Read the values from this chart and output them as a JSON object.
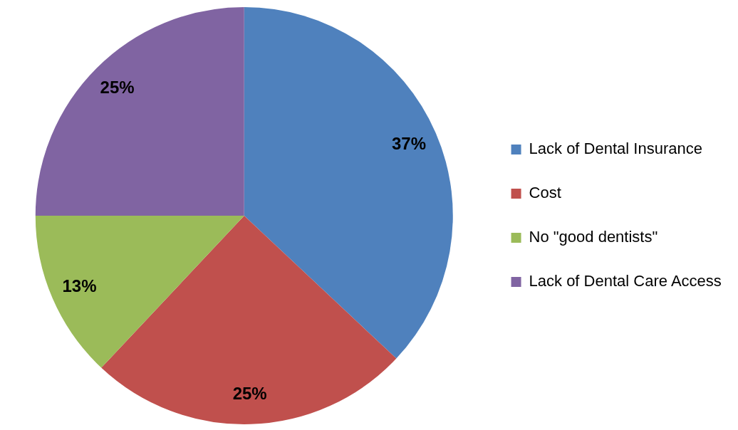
{
  "chart_data": {
    "type": "pie",
    "categories": [
      "Lack of Dental Insurance",
      "Cost",
      "No \"good dentists\"",
      "Lack of Dental Care Access"
    ],
    "values": [
      37,
      25,
      13,
      25
    ],
    "colors": [
      "#4f81bd",
      "#c0504d",
      "#9bbb59",
      "#8064a2"
    ],
    "value_labels": [
      "37%",
      "25%",
      "13%",
      "25%"
    ],
    "legend": "right"
  }
}
